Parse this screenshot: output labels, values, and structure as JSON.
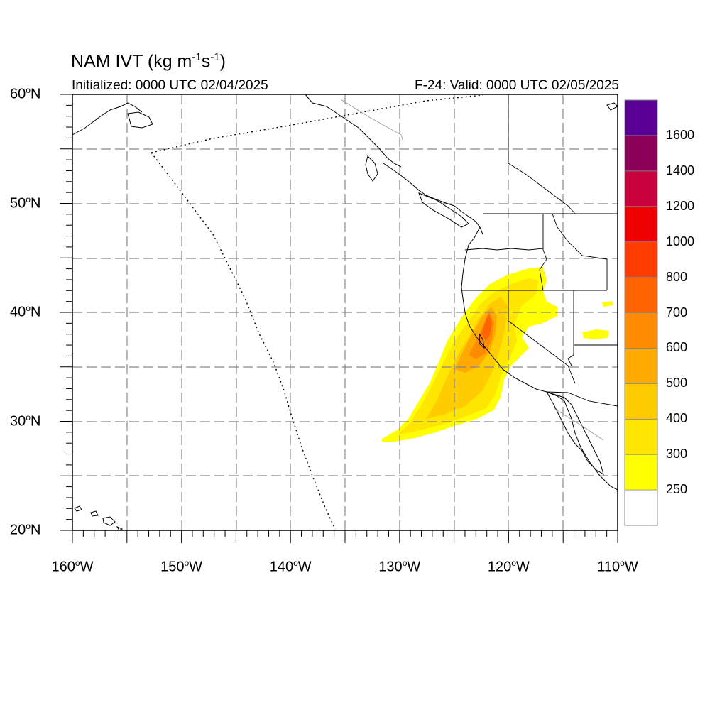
{
  "title": {
    "main": "NAM IVT (kg m",
    "sup1": "-1",
    "mid": "s",
    "sup2": "-1",
    "end": ")"
  },
  "subtitle_left": "Initialized: 0000 UTC 02/04/2025",
  "subtitle_right": "F-24: Valid: 0000 UTC 02/05/2025",
  "lat_labels": [
    {
      "text": "60",
      "suffix": "N",
      "lat": 60
    },
    {
      "text": "50",
      "suffix": "N",
      "lat": 50
    },
    {
      "text": "40",
      "suffix": "N",
      "lat": 40
    },
    {
      "text": "30",
      "suffix": "N",
      "lat": 30
    },
    {
      "text": "20",
      "suffix": "N",
      "lat": 20
    }
  ],
  "lon_labels": [
    {
      "text": "160",
      "suffix": "W",
      "lon": -160
    },
    {
      "text": "150",
      "suffix": "W",
      "lon": -150
    },
    {
      "text": "140",
      "suffix": "W",
      "lon": -140
    },
    {
      "text": "130",
      "suffix": "W",
      "lon": -130
    },
    {
      "text": "120",
      "suffix": "W",
      "lon": -120
    },
    {
      "text": "110",
      "suffix": "W",
      "lon": -110
    }
  ],
  "extent": {
    "lon_min": -160,
    "lon_max": -110,
    "lat_min": 20,
    "lat_max": 60
  },
  "colorbar": {
    "colors": [
      "#ffffff",
      "#ffff00",
      "#ffe600",
      "#ffcc00",
      "#ffaa00",
      "#ff8c00",
      "#ff6400",
      "#ff3c00",
      "#ee0000",
      "#c8003c",
      "#8c005a",
      "#5a0096"
    ],
    "labels": [
      "250",
      "300",
      "400",
      "500",
      "600",
      "700",
      "800",
      "1000",
      "1200",
      "1400",
      "1600"
    ]
  },
  "colors": {
    "grid": "#888888",
    "coast": "#000000",
    "ivt_low": "#ffff00",
    "ivt_mid": "#ffc800",
    "ivt_high": "#ff8c00",
    "ivt_core": "#ff5000"
  }
}
